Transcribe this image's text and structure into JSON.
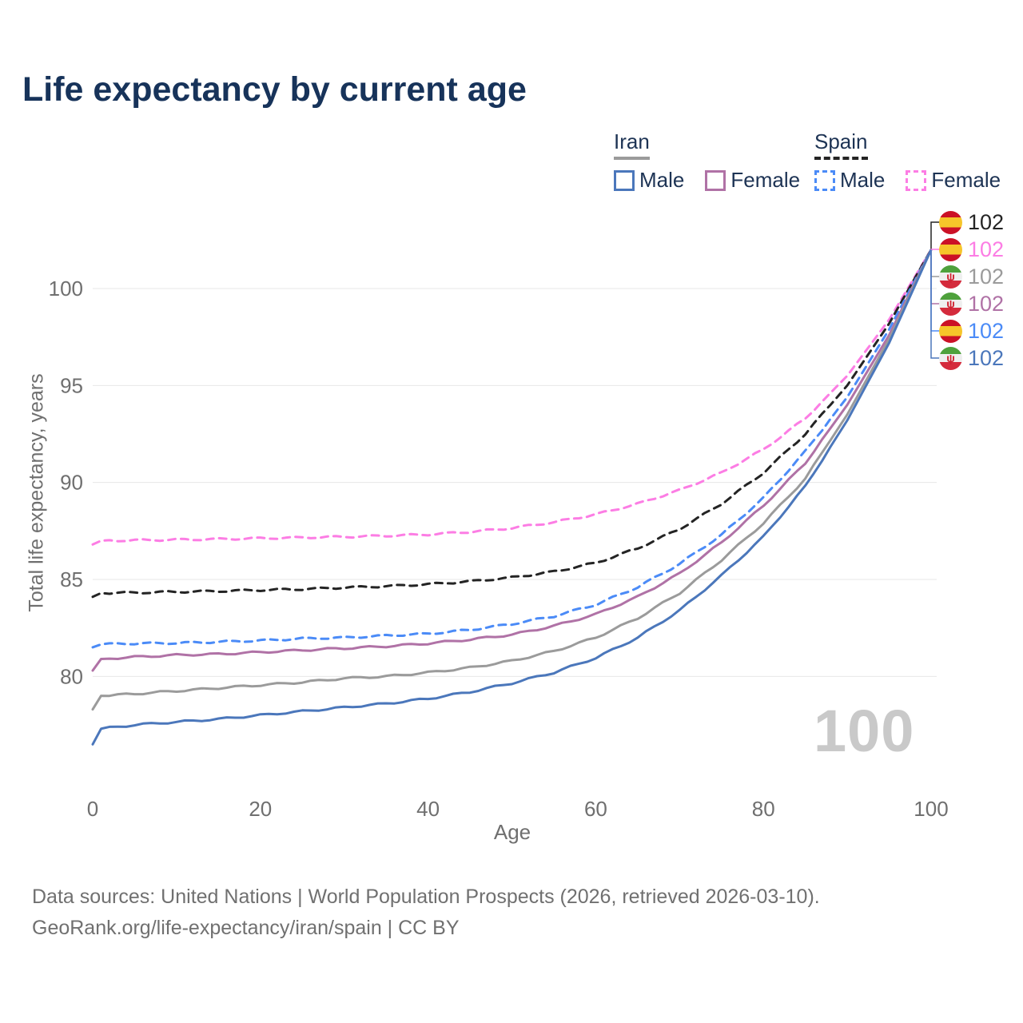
{
  "title": "Life expectancy by current age",
  "watermark": "100",
  "legend": {
    "iran": {
      "label": "Iran",
      "male": "Male",
      "female": "Female"
    },
    "spain": {
      "label": "Spain",
      "male": "Male",
      "female": "Female"
    }
  },
  "footer": {
    "line1": "Data sources: United Nations | World Population Prospects (2026, retrieved 2026-03-10).",
    "line2": "GeoRank.org/life-expectancy/iran/spain | CC BY"
  },
  "chart_data": {
    "type": "line",
    "title": "Life expectancy by current age",
    "xlabel": "Age",
    "ylabel": "Total life expectancy, years",
    "xlim": [
      0,
      100
    ],
    "ylim": [
      76,
      103
    ],
    "x_ticks": [
      0,
      20,
      40,
      60,
      80,
      100
    ],
    "y_ticks": [
      80,
      85,
      90,
      95,
      100
    ],
    "grid": "horizontal",
    "legend_position": "top-right",
    "grid_color": "#e7e7e7",
    "tick_color": "#6f6f6f",
    "end_label_order": [
      "spain_all",
      "spain_female",
      "iran_all",
      "iran_female",
      "spain_male",
      "iran_male"
    ],
    "series": [
      {
        "id": "spain_female",
        "country": "Spain",
        "sex": "female",
        "flag": "spain",
        "color": "#fc7de4",
        "dashed": true,
        "end_label": "102",
        "end_value": 102,
        "points": [
          [
            0,
            86.8
          ],
          [
            1,
            87.0
          ],
          [
            5,
            87.02
          ],
          [
            10,
            87.05
          ],
          [
            15,
            87.08
          ],
          [
            20,
            87.12
          ],
          [
            25,
            87.16
          ],
          [
            30,
            87.2
          ],
          [
            35,
            87.25
          ],
          [
            40,
            87.32
          ],
          [
            45,
            87.45
          ],
          [
            50,
            87.65
          ],
          [
            55,
            87.95
          ],
          [
            60,
            88.35
          ],
          [
            65,
            88.9
          ],
          [
            70,
            89.6
          ],
          [
            75,
            90.5
          ],
          [
            80,
            91.7
          ],
          [
            85,
            93.3
          ],
          [
            90,
            95.5
          ],
          [
            95,
            98.4
          ],
          [
            100,
            102
          ]
        ]
      },
      {
        "id": "spain_all",
        "country": "Spain",
        "sex": "all",
        "flag": "spain",
        "color": "#242424",
        "dashed": true,
        "end_label": "102",
        "end_value": 102,
        "points": [
          [
            0,
            84.1
          ],
          [
            1,
            84.3
          ],
          [
            5,
            84.32
          ],
          [
            10,
            84.36
          ],
          [
            15,
            84.4
          ],
          [
            20,
            84.45
          ],
          [
            25,
            84.5
          ],
          [
            30,
            84.58
          ],
          [
            35,
            84.65
          ],
          [
            40,
            84.75
          ],
          [
            45,
            84.9
          ],
          [
            50,
            85.1
          ],
          [
            55,
            85.4
          ],
          [
            60,
            85.85
          ],
          [
            65,
            86.6
          ],
          [
            70,
            87.6
          ],
          [
            75,
            88.9
          ],
          [
            80,
            90.5
          ],
          [
            85,
            92.5
          ],
          [
            90,
            95.0
          ],
          [
            95,
            98.2
          ],
          [
            100,
            102
          ]
        ]
      },
      {
        "id": "spain_male",
        "country": "Spain",
        "sex": "male",
        "flag": "spain",
        "color": "#4b8bf7",
        "dashed": true,
        "end_label": "102",
        "end_value": 102,
        "points": [
          [
            0,
            81.5
          ],
          [
            1,
            81.65
          ],
          [
            5,
            81.7
          ],
          [
            10,
            81.72
          ],
          [
            15,
            81.78
          ],
          [
            20,
            81.85
          ],
          [
            25,
            81.95
          ],
          [
            30,
            82.0
          ],
          [
            35,
            82.1
          ],
          [
            40,
            82.2
          ],
          [
            45,
            82.4
          ],
          [
            50,
            82.7
          ],
          [
            55,
            83.1
          ],
          [
            60,
            83.7
          ],
          [
            65,
            84.6
          ],
          [
            70,
            85.8
          ],
          [
            75,
            87.3
          ],
          [
            80,
            89.2
          ],
          [
            85,
            91.6
          ],
          [
            90,
            94.4
          ],
          [
            95,
            97.9
          ],
          [
            100,
            102
          ]
        ]
      },
      {
        "id": "iran_female",
        "country": "Iran",
        "sex": "female",
        "flag": "iran",
        "color": "#b072a6",
        "dashed": false,
        "end_label": "102",
        "end_value": 102,
        "points": [
          [
            0,
            80.3
          ],
          [
            1,
            80.9
          ],
          [
            5,
            81.0
          ],
          [
            10,
            81.1
          ],
          [
            15,
            81.15
          ],
          [
            20,
            81.25
          ],
          [
            25,
            81.35
          ],
          [
            30,
            81.45
          ],
          [
            35,
            81.55
          ],
          [
            40,
            81.7
          ],
          [
            45,
            81.9
          ],
          [
            50,
            82.15
          ],
          [
            55,
            82.6
          ],
          [
            60,
            83.2
          ],
          [
            65,
            84.1
          ],
          [
            70,
            85.3
          ],
          [
            75,
            86.9
          ],
          [
            80,
            88.8
          ],
          [
            85,
            91.0
          ],
          [
            90,
            94.0
          ],
          [
            95,
            97.6
          ],
          [
            100,
            102
          ]
        ]
      },
      {
        "id": "iran_all",
        "country": "Iran",
        "sex": "all",
        "flag": "iran",
        "color": "#9b9b9b",
        "dashed": false,
        "end_label": "102",
        "end_value": 102,
        "points": [
          [
            0,
            78.3
          ],
          [
            1,
            79.0
          ],
          [
            5,
            79.1
          ],
          [
            10,
            79.25
          ],
          [
            15,
            79.4
          ],
          [
            20,
            79.55
          ],
          [
            25,
            79.7
          ],
          [
            30,
            79.9
          ],
          [
            35,
            80.0
          ],
          [
            40,
            80.2
          ],
          [
            45,
            80.45
          ],
          [
            50,
            80.8
          ],
          [
            55,
            81.3
          ],
          [
            60,
            82.0
          ],
          [
            65,
            83.0
          ],
          [
            70,
            84.3
          ],
          [
            75,
            86.0
          ],
          [
            80,
            87.9
          ],
          [
            85,
            90.2
          ],
          [
            90,
            93.5
          ],
          [
            95,
            97.4
          ],
          [
            100,
            102
          ]
        ]
      },
      {
        "id": "iran_male",
        "country": "Iran",
        "sex": "male",
        "flag": "iran",
        "color": "#4b77bb",
        "dashed": false,
        "end_label": "102",
        "end_value": 102,
        "points": [
          [
            0,
            76.5
          ],
          [
            1,
            77.3
          ],
          [
            5,
            77.5
          ],
          [
            10,
            77.65
          ],
          [
            15,
            77.8
          ],
          [
            20,
            78.0
          ],
          [
            25,
            78.2
          ],
          [
            30,
            78.4
          ],
          [
            35,
            78.6
          ],
          [
            40,
            78.85
          ],
          [
            45,
            79.2
          ],
          [
            50,
            79.65
          ],
          [
            55,
            80.2
          ],
          [
            60,
            80.95
          ],
          [
            65,
            82.0
          ],
          [
            70,
            83.4
          ],
          [
            75,
            85.2
          ],
          [
            80,
            87.2
          ],
          [
            85,
            89.8
          ],
          [
            90,
            93.2
          ],
          [
            95,
            97.2
          ],
          [
            100,
            102
          ]
        ]
      }
    ]
  }
}
